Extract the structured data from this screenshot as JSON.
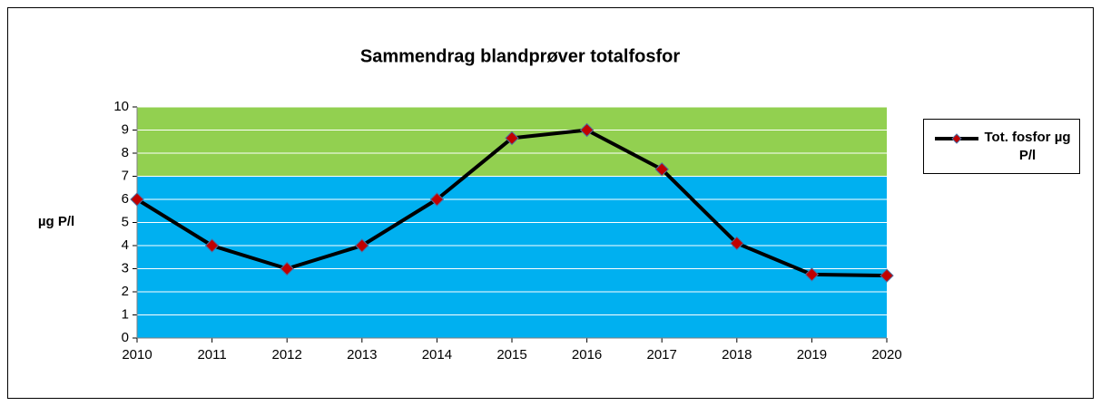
{
  "chart_data": {
    "type": "line",
    "title": "Sammendrag blandprøver totalfosfor",
    "ylabel": "µg P/l",
    "x": [
      2010,
      2011,
      2012,
      2013,
      2014,
      2015,
      2016,
      2017,
      2018,
      2019,
      2020
    ],
    "series": [
      {
        "name": "Tot. fosfor µg P/l",
        "color": "#000000",
        "marker_color": "#c00000",
        "values": [
          6,
          4,
          3,
          4,
          6,
          8.65,
          9,
          7.3,
          4.1,
          2.75,
          2.7
        ]
      }
    ],
    "xlim": [
      2010,
      2020
    ],
    "xticks": [
      2010,
      2011,
      2012,
      2013,
      2014,
      2015,
      2016,
      2017,
      2018,
      2019,
      2020
    ],
    "ylim": [
      0,
      10
    ],
    "yticks": [
      0,
      1,
      2,
      3,
      4,
      5,
      6,
      7,
      8,
      9,
      10
    ],
    "grid": true,
    "legend": "right",
    "bands": [
      {
        "from": 0,
        "to": 7,
        "color": "#00b0f0"
      },
      {
        "from": 7,
        "to": 10,
        "color": "#92d050"
      }
    ]
  }
}
